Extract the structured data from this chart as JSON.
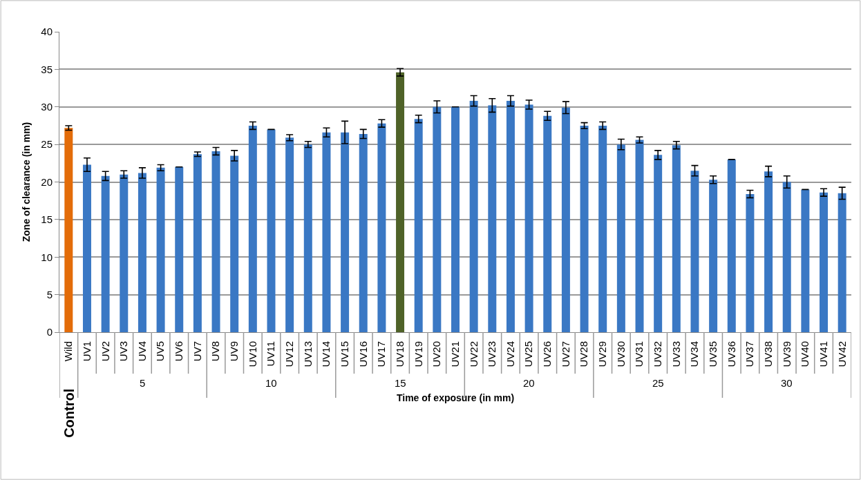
{
  "chart_data": {
    "type": "bar",
    "xlabel": "Time of exposure (in mm)",
    "ylabel": "Zone of clearance (in mm)",
    "categories": [
      "Wild",
      "UV1",
      "UV2",
      "UV3",
      "UV4",
      "UV5",
      "UV6",
      "UV7",
      "UV8",
      "UV9",
      "UV10",
      "UV11",
      "UV12",
      "UV13",
      "UV14",
      "UV15",
      "UV16",
      "UV17",
      "UV18",
      "UV19",
      "UV20",
      "UV21",
      "UV22",
      "UV23",
      "UV24",
      "UV25",
      "UV26",
      "UV27",
      "UV28",
      "UV29",
      "UV30",
      "UV31",
      "UV32",
      "UV33",
      "UV34",
      "UV35",
      "UV36",
      "UV37",
      "UV38",
      "UV39",
      "UV40",
      "UV41",
      "UV42"
    ],
    "values": [
      27.2,
      22.3,
      20.8,
      21.0,
      21.2,
      21.9,
      22.0,
      23.7,
      24.1,
      23.5,
      27.5,
      27.0,
      25.9,
      25.0,
      26.6,
      26.6,
      26.4,
      27.8,
      34.6,
      28.4,
      30.0,
      30.0,
      30.8,
      30.2,
      30.8,
      30.3,
      28.8,
      29.9,
      27.5,
      27.5,
      25.0,
      25.6,
      23.6,
      24.9,
      21.5,
      20.3,
      23.0,
      18.4,
      21.4,
      20.0,
      19.0,
      18.6,
      18.5
    ],
    "errors": [
      0.3,
      0.9,
      0.6,
      0.5,
      0.7,
      0.4,
      0,
      0.3,
      0.5,
      0.7,
      0.5,
      0,
      0.4,
      0.4,
      0.6,
      1.5,
      0.6,
      0.5,
      0.5,
      0.5,
      0.8,
      0,
      0.7,
      0.9,
      0.7,
      0.6,
      0.6,
      0.8,
      0.4,
      0.5,
      0.7,
      0.4,
      0.6,
      0.5,
      0.7,
      0.5,
      0,
      0.5,
      0.7,
      0.8,
      0,
      0.5,
      0.8
    ],
    "colors": [
      "#e36c09",
      "#3a78c4",
      "#3a78c4",
      "#3a78c4",
      "#3a78c4",
      "#3a78c4",
      "#3a78c4",
      "#3a78c4",
      "#3a78c4",
      "#3a78c4",
      "#3a78c4",
      "#3a78c4",
      "#3a78c4",
      "#3a78c4",
      "#3a78c4",
      "#3a78c4",
      "#3a78c4",
      "#3a78c4",
      "#4f6228",
      "#3a78c4",
      "#3a78c4",
      "#3a78c4",
      "#3a78c4",
      "#3a78c4",
      "#3a78c4",
      "#3a78c4",
      "#3a78c4",
      "#3a78c4",
      "#3a78c4",
      "#3a78c4",
      "#3a78c4",
      "#3a78c4",
      "#3a78c4",
      "#3a78c4",
      "#3a78c4",
      "#3a78c4",
      "#3a78c4",
      "#3a78c4",
      "#3a78c4",
      "#3a78c4",
      "#3a78c4",
      "#3a78c4",
      "#3a78c4"
    ],
    "ylim": [
      0,
      40
    ],
    "yticks": [
      0,
      5,
      10,
      15,
      20,
      25,
      30,
      35,
      40
    ],
    "grid": "y",
    "legend": false,
    "annotations": [
      "Control",
      "5",
      "10",
      "15",
      "20",
      "25",
      "30"
    ]
  }
}
